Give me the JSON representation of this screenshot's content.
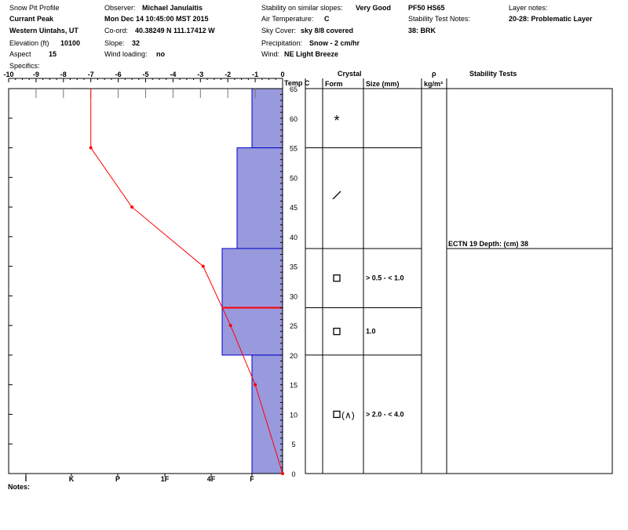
{
  "header": {
    "col1": {
      "title": "Snow Pit Profile",
      "location": "Currant Peak",
      "region": "Western Uintahs, UT",
      "elevation_label": "Elevation (ft)",
      "elevation_value": "10100",
      "aspect_label": "Aspect",
      "aspect_value": "15",
      "specifics_label": "Specifics:"
    },
    "col2": {
      "observer_label": "Observer:",
      "observer_value": "Michael Janulaitis",
      "datetime": "Mon Dec 14 10:45:00 MST 2015",
      "coord_label": "Co-ord:",
      "coord_value": "40.38249 N 111.17412 W",
      "slope_label": "Slope:",
      "slope_value": "32",
      "wind_loading_label": "Wind loading:",
      "wind_loading_value": "no"
    },
    "col3": {
      "stability_label": "Stability on similar slopes:",
      "stability_value": "Very Good",
      "air_temp_label": "Air Temperature:",
      "air_temp_value": "C",
      "sky_label": "Sky Cover:",
      "sky_value": "sky 8/8 covered",
      "precip_label": "Precipitation:",
      "precip_value": "Snow - 2 cm/hr",
      "wind_label": "Wind:",
      "wind_value": "NE Light Breeze"
    },
    "col4": {
      "pf": "PF50 HS65",
      "stability_notes_label": "Stability Test Notes:",
      "stability_notes_value": "38: BRK"
    },
    "col5": {
      "layer_notes_label": "Layer notes:",
      "layer_notes_value": "20-28: Problematic Layer"
    }
  },
  "table_headers": {
    "crystal": "Crystal",
    "form": "Form",
    "size": "Size (mm)",
    "rho": "ρ",
    "density_unit": "kg/m³",
    "stability_tests": "Stability Tests"
  },
  "notes_label": "Notes:",
  "chart_data": {
    "type": "line",
    "temp_axis": {
      "label": "Temp C",
      "range": [
        -10,
        0
      ],
      "ticks": [
        "-10",
        "-9",
        "-8",
        "-7",
        "-6",
        "-5",
        "-4",
        "-3",
        "-2",
        "-1",
        "0"
      ]
    },
    "height_axis": {
      "range": [
        0,
        65
      ],
      "ticks": [
        "65",
        "60",
        "55",
        "50",
        "45",
        "40",
        "35",
        "30",
        "25",
        "20",
        "15",
        "10",
        "5",
        "0"
      ]
    },
    "hardness_axis": {
      "categories": [
        "I",
        "K",
        "P",
        "1F",
        "4F",
        "F"
      ]
    },
    "temperature_profile": {
      "color": "#ff0000",
      "points": [
        [
          -7,
          65
        ],
        [
          -7,
          55
        ],
        [
          -5.5,
          45
        ],
        [
          -2.9,
          35
        ],
        [
          -1.9,
          25
        ],
        [
          -1,
          15
        ],
        [
          0,
          0
        ]
      ]
    },
    "hardness_layers": {
      "fill": "#9999dd",
      "layers": [
        {
          "bottom": 55,
          "top": 65,
          "hardness": "F"
        },
        {
          "bottom": 38,
          "top": 55,
          "hardness": "F+"
        },
        {
          "bottom": 20,
          "top": 38,
          "hardness": "4F-"
        },
        {
          "bottom": 0,
          "top": 20,
          "hardness": "F"
        }
      ]
    },
    "problem_layer_line": {
      "height": 28,
      "color": "#ff0000"
    },
    "layer_boundaries": [
      55,
      38,
      28,
      20
    ],
    "crystals": [
      {
        "height": 60,
        "form": "*",
        "size": ""
      },
      {
        "height": 47,
        "form": "/",
        "size": ""
      },
      {
        "height": 33,
        "form": "□",
        "size": "> 0.5 - < 1.0"
      },
      {
        "height": 24,
        "form": "□",
        "size": "1.0"
      },
      {
        "height": 10,
        "form": "□(∧)",
        "size": "> 2.0 - < 4.0"
      }
    ],
    "stability_tests": [
      {
        "height": 38,
        "text": "ECTN 19  Depth: (cm) 38"
      }
    ]
  }
}
